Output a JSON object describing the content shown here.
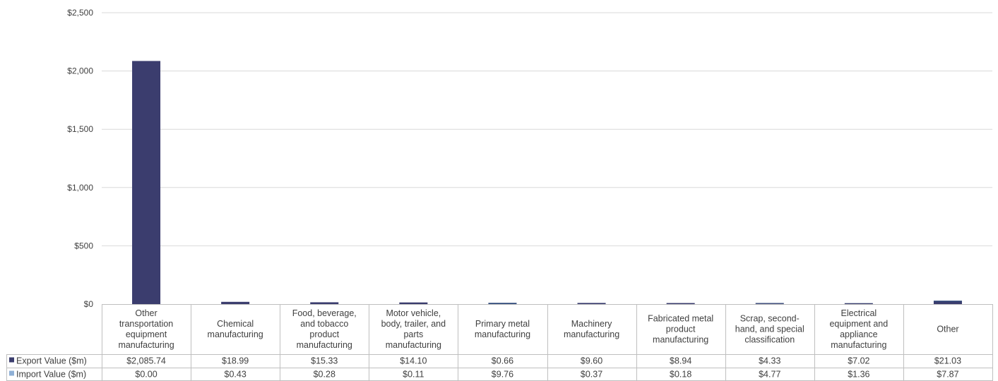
{
  "chart_data": {
    "type": "bar",
    "categories": [
      "Other transportation equipment manufacturing",
      "Chemical manufacturing",
      "Food, beverage, and tobacco product manufacturing",
      "Motor vehicle, body, trailer, and parts manufacturing",
      "Primary metal manufacturing",
      "Machinery manufacturing",
      "Fabricated metal product manufacturing",
      "Scrap, second-hand, and special classification",
      "Electrical equipment and appliance manufacturing",
      "Other"
    ],
    "category_lines": [
      [
        "Other",
        "transportation",
        "equipment",
        "manufacturing"
      ],
      [
        "Chemical",
        "manufacturing"
      ],
      [
        "Food, beverage,",
        "and tobacco",
        "product",
        "manufacturing"
      ],
      [
        "Motor vehicle,",
        "body, trailer, and",
        "parts",
        "manufacturing"
      ],
      [
        "Primary metal",
        "manufacturing"
      ],
      [
        "Machinery",
        "manufacturing"
      ],
      [
        "Fabricated metal",
        "product",
        "manufacturing"
      ],
      [
        "Scrap, second-",
        "hand, and special",
        "classification"
      ],
      [
        "Electrical",
        "equipment and",
        "appliance",
        "manufacturing"
      ],
      [
        "Other"
      ]
    ],
    "series": [
      {
        "name": "Export Value ($m)",
        "color": "#3b3d6e",
        "values": [
          2085.74,
          18.99,
          15.33,
          14.1,
          0.66,
          9.6,
          8.94,
          4.33,
          7.02,
          21.03
        ],
        "labels": [
          "$2,085.74",
          "$18.99",
          "$15.33",
          "$14.10",
          "$0.66",
          "$9.60",
          "$8.94",
          "$4.33",
          "$7.02",
          "$21.03"
        ]
      },
      {
        "name": "Import Value ($m)",
        "color": "#1f3b70",
        "legend_color": "#8fb0d6",
        "values": [
          0.0,
          0.43,
          0.28,
          0.11,
          9.76,
          0.37,
          0.18,
          4.77,
          1.36,
          7.87
        ],
        "labels": [
          "$0.00",
          "$0.43",
          "$0.28",
          "$0.11",
          "$9.76",
          "$0.37",
          "$0.18",
          "$4.77",
          "$1.36",
          "$7.87"
        ]
      }
    ],
    "yticks": [
      "$0",
      "$500",
      "$1,000",
      "$1,500",
      "$2,000",
      "$2,500"
    ],
    "ytick_values": [
      0,
      500,
      1000,
      1500,
      2000,
      2500
    ],
    "ylim": [
      0,
      2500
    ],
    "grid": true,
    "legend": "data-table"
  }
}
